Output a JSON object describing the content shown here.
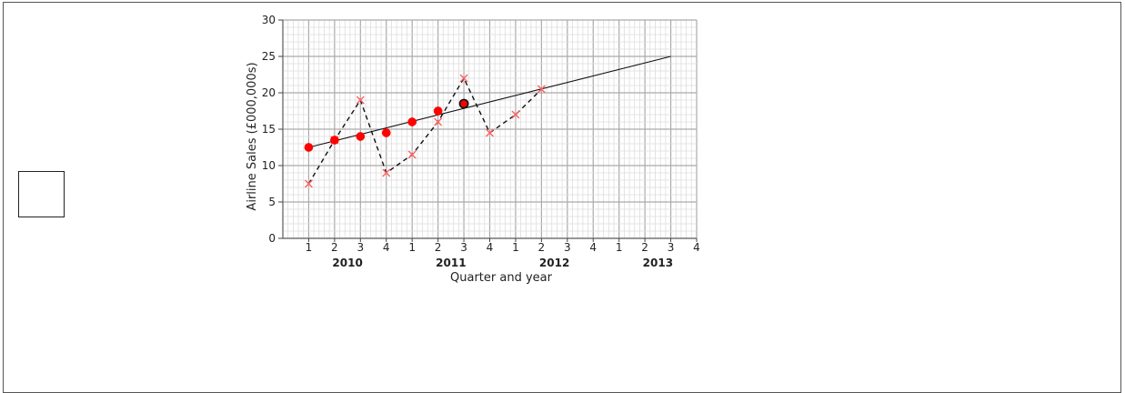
{
  "chart_data": {
    "type": "scatter",
    "xlabel": "Quarter and year",
    "ylabel": "Airline Sales (£000,000s)",
    "ylim": [
      0,
      30
    ],
    "y_ticks": [
      "0",
      "5",
      "10",
      "15",
      "20",
      "25",
      "30"
    ],
    "quarter_labels": [
      "1",
      "2",
      "3",
      "4",
      "1",
      "2",
      "3",
      "4",
      "1",
      "2",
      "3",
      "4",
      "1",
      "2",
      "3",
      "4"
    ],
    "year_labels": [
      "2010",
      "2011",
      "2012",
      "2013"
    ],
    "grid": true,
    "series": [
      {
        "kind": "sales",
        "style": "cross-dashed",
        "x": [
          1,
          2,
          3,
          4,
          5,
          6,
          7,
          8,
          9,
          10
        ],
        "values": [
          7.5,
          13.5,
          19,
          9,
          11.5,
          16,
          22,
          14.5,
          17,
          20.5
        ]
      },
      {
        "kind": "moving-average",
        "style": "dot",
        "x": [
          1,
          2,
          3,
          4,
          5,
          6,
          7
        ],
        "values": [
          12.5,
          13.5,
          14,
          14.5,
          16,
          17.5,
          18.5
        ]
      }
    ],
    "trend_line": {
      "x": [
        1,
        15
      ],
      "values": [
        12.5,
        25
      ]
    },
    "colors": {
      "marker": "#ff0000",
      "cross": "#ff6060",
      "line": "#111111",
      "grid_major": "#aaaaaa",
      "grid_minor": "#dddddd"
    }
  }
}
